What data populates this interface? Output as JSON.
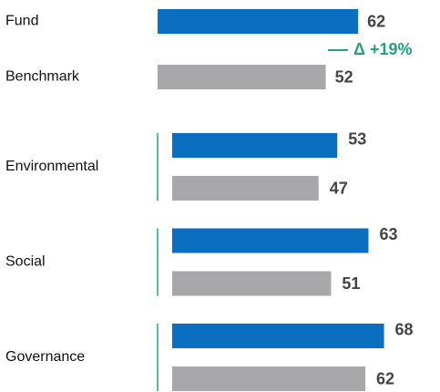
{
  "chart_data": [
    {
      "type": "hbar",
      "categories": [
        "Fund",
        "Benchmark"
      ],
      "values": [
        62,
        52
      ],
      "colors": [
        "#0b6fc1",
        "#a8a8aa"
      ],
      "annotation": "Δ +19%",
      "annotation_color": "#1fa67a"
    },
    {
      "type": "grouped-hbar",
      "categories": [
        "Environmental",
        "Social",
        "Governance"
      ],
      "series": [
        {
          "color": "#0b6fc1",
          "values": [
            53,
            63,
            68
          ]
        },
        {
          "color": "#a8a8aa",
          "values": [
            47,
            51,
            62
          ]
        }
      ],
      "group_line_color": "#1fa67a"
    }
  ]
}
